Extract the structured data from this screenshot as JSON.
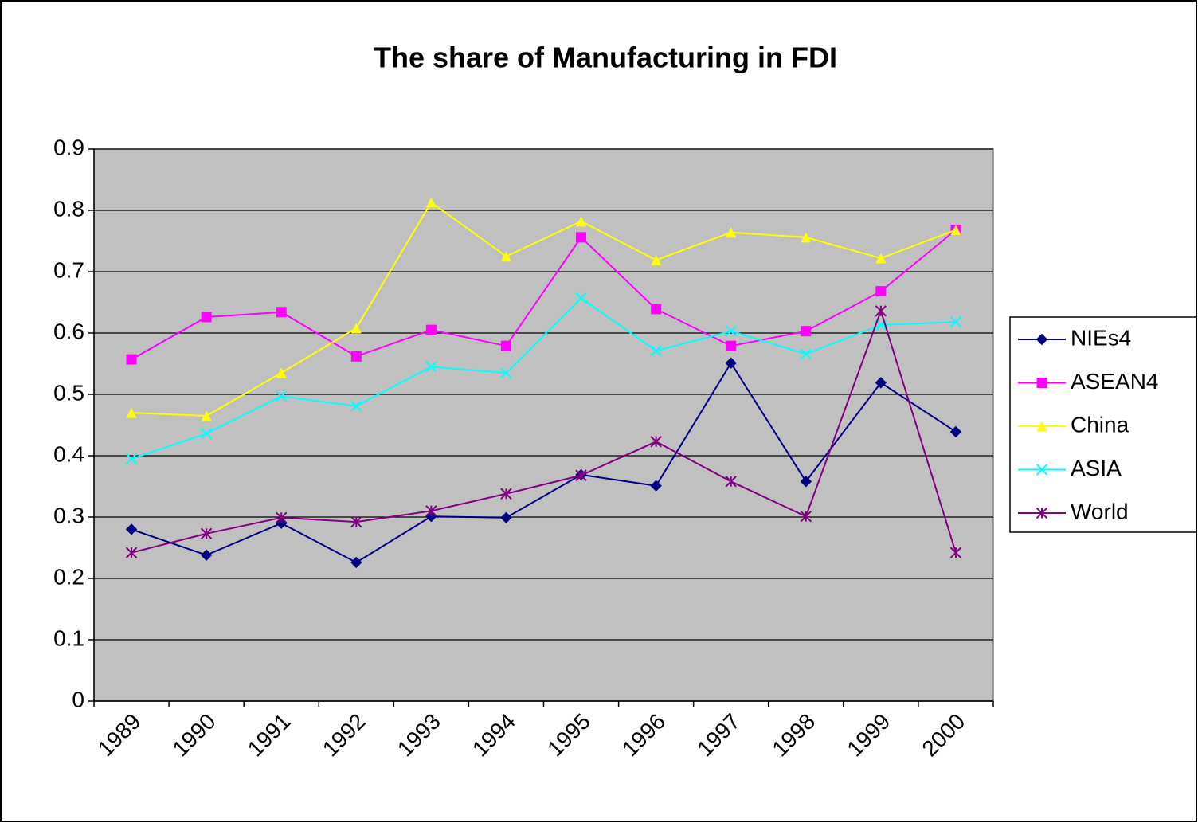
{
  "chart_data": {
    "type": "line",
    "title": "The share of Manufacturing in FDI",
    "categories": [
      "1989",
      "1990",
      "1991",
      "1992",
      "1993",
      "1994",
      "1995",
      "1996",
      "1997",
      "1998",
      "1999",
      "2000"
    ],
    "series": [
      {
        "name": "NIEs4",
        "color": "#000080",
        "marker": "diamond",
        "values": [
          0.28,
          0.238,
          0.29,
          0.226,
          0.301,
          0.299,
          0.369,
          0.351,
          0.551,
          0.358,
          0.519,
          0.439
        ]
      },
      {
        "name": "ASEAN4",
        "color": "#ff00ff",
        "marker": "square",
        "values": [
          0.557,
          0.626,
          0.634,
          0.562,
          0.605,
          0.579,
          0.756,
          0.639,
          0.579,
          0.603,
          0.668,
          0.768
        ]
      },
      {
        "name": "China",
        "color": "#ffff00",
        "marker": "triangle",
        "values": [
          0.47,
          0.465,
          0.535,
          0.608,
          0.813,
          0.725,
          0.782,
          0.719,
          0.764,
          0.756,
          0.722,
          0.768
        ]
      },
      {
        "name": "ASIA",
        "color": "#00ffff",
        "marker": "x",
        "values": [
          0.395,
          0.436,
          0.497,
          0.481,
          0.545,
          0.535,
          0.657,
          0.571,
          0.603,
          0.566,
          0.613,
          0.618
        ]
      },
      {
        "name": "World",
        "color": "#800080",
        "marker": "star",
        "values": [
          0.242,
          0.273,
          0.299,
          0.292,
          0.31,
          0.338,
          0.368,
          0.423,
          0.358,
          0.301,
          0.636,
          0.242
        ]
      }
    ],
    "ylim": [
      0,
      0.9
    ],
    "yticks": [
      0,
      0.1,
      0.2,
      0.3,
      0.4,
      0.5,
      0.6,
      0.7,
      0.8,
      0.9
    ],
    "grid": true,
    "legend": "right",
    "plot_background": "#c0c0c0"
  }
}
